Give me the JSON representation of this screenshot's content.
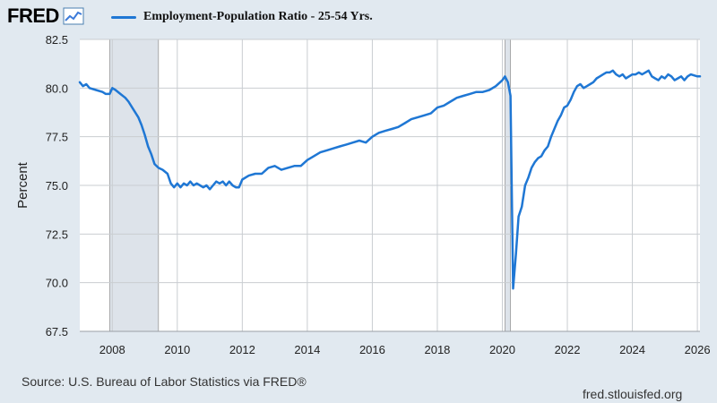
{
  "header": {
    "logo_text": "FRED",
    "logo_icon": "line-chart-icon",
    "legend_label": "Employment-Population Ratio - 25-54 Yrs.",
    "series_color": "#1f77d4"
  },
  "footer": {
    "source": "Source: U.S. Bureau of Labor Statistics via FRED®",
    "site": "fred.stlouisfed.org"
  },
  "colors": {
    "background": "#e1e9f0",
    "plot_background": "#ffffff",
    "recession_shade": "#dde3ea",
    "grid": "#c9cdd1",
    "line": "#1f77d4"
  },
  "chart_data": {
    "type": "line",
    "title": "",
    "xlabel": "",
    "ylabel": "Percent",
    "x_tick_labels": [
      "2008",
      "2010",
      "2012",
      "2014",
      "2016",
      "2018",
      "2020",
      "2022",
      "2024",
      "2026"
    ],
    "x_ticks": [
      2008,
      2010,
      2012,
      2014,
      2016,
      2018,
      2020,
      2022,
      2024,
      2026
    ],
    "y_tick_labels": [
      "67.5",
      "70.0",
      "72.5",
      "75.0",
      "77.5",
      "80.0",
      "82.5"
    ],
    "y_ticks": [
      67.5,
      70.0,
      72.5,
      75.0,
      77.5,
      80.0,
      82.5
    ],
    "xlim": [
      2007.0,
      2026.08
    ],
    "ylim": [
      67.5,
      82.5
    ],
    "grid": true,
    "legend_position": "top-left",
    "recessions": [
      {
        "start": 2007.92,
        "end": 2009.42
      },
      {
        "start": 2020.08,
        "end": 2020.25
      }
    ],
    "series": [
      {
        "name": "Employment-Population Ratio - 25-54 Yrs.",
        "x": [
          2007.0,
          2007.1,
          2007.2,
          2007.3,
          2007.5,
          2007.7,
          2007.8,
          2007.92,
          2008.0,
          2008.1,
          2008.25,
          2008.4,
          2008.5,
          2008.65,
          2008.8,
          2008.9,
          2009.0,
          2009.1,
          2009.2,
          2009.3,
          2009.42,
          2009.55,
          2009.7,
          2009.8,
          2009.9,
          2010.0,
          2010.1,
          2010.2,
          2010.3,
          2010.4,
          2010.5,
          2010.6,
          2010.7,
          2010.8,
          2010.9,
          2011.0,
          2011.1,
          2011.2,
          2011.3,
          2011.4,
          2011.5,
          2011.6,
          2011.7,
          2011.8,
          2011.9,
          2012.0,
          2012.2,
          2012.4,
          2012.6,
          2012.8,
          2013.0,
          2013.2,
          2013.4,
          2013.6,
          2013.8,
          2014.0,
          2014.2,
          2014.4,
          2014.6,
          2014.8,
          2015.0,
          2015.2,
          2015.4,
          2015.6,
          2015.8,
          2016.0,
          2016.2,
          2016.4,
          2016.6,
          2016.8,
          2017.0,
          2017.2,
          2017.4,
          2017.6,
          2017.8,
          2018.0,
          2018.2,
          2018.4,
          2018.6,
          2018.8,
          2019.0,
          2019.2,
          2019.4,
          2019.6,
          2019.8,
          2020.0,
          2020.08,
          2020.17,
          2020.25,
          2020.33,
          2020.42,
          2020.5,
          2020.6,
          2020.7,
          2020.8,
          2020.9,
          2021.0,
          2021.1,
          2021.2,
          2021.3,
          2021.4,
          2021.5,
          2021.6,
          2021.7,
          2021.8,
          2021.9,
          2022.0,
          2022.1,
          2022.2,
          2022.3,
          2022.4,
          2022.5,
          2022.6,
          2022.7,
          2022.8,
          2022.9,
          2023.0,
          2023.1,
          2023.2,
          2023.3,
          2023.4,
          2023.5,
          2023.6,
          2023.7,
          2023.8,
          2023.9,
          2024.0,
          2024.1,
          2024.2,
          2024.3,
          2024.4,
          2024.5,
          2024.6,
          2024.7,
          2024.8,
          2024.9,
          2025.0,
          2025.1,
          2025.2,
          2025.3,
          2025.4,
          2025.5,
          2025.6,
          2025.7,
          2025.8,
          2026.0,
          2026.08
        ],
        "y": [
          80.3,
          80.1,
          80.2,
          80.0,
          79.9,
          79.8,
          79.7,
          79.7,
          80.0,
          79.9,
          79.7,
          79.5,
          79.3,
          78.9,
          78.5,
          78.1,
          77.6,
          77.0,
          76.6,
          76.1,
          75.9,
          75.8,
          75.6,
          75.1,
          74.9,
          75.1,
          74.9,
          75.1,
          75.0,
          75.2,
          75.0,
          75.1,
          75.0,
          74.9,
          75.0,
          74.8,
          75.0,
          75.2,
          75.1,
          75.2,
          75.0,
          75.2,
          75.0,
          74.9,
          74.9,
          75.3,
          75.5,
          75.6,
          75.6,
          75.9,
          76.0,
          75.8,
          75.9,
          76.0,
          76.0,
          76.3,
          76.5,
          76.7,
          76.8,
          76.9,
          77.0,
          77.1,
          77.2,
          77.3,
          77.2,
          77.5,
          77.7,
          77.8,
          77.9,
          78.0,
          78.2,
          78.4,
          78.5,
          78.6,
          78.7,
          79.0,
          79.1,
          79.3,
          79.5,
          79.6,
          79.7,
          79.8,
          79.8,
          79.9,
          80.1,
          80.4,
          80.6,
          80.3,
          79.6,
          69.7,
          71.5,
          73.4,
          73.9,
          75.0,
          75.4,
          75.9,
          76.2,
          76.4,
          76.5,
          76.8,
          77.0,
          77.5,
          77.9,
          78.3,
          78.6,
          79.0,
          79.1,
          79.4,
          79.8,
          80.1,
          80.2,
          80.0,
          80.1,
          80.2,
          80.3,
          80.5,
          80.6,
          80.7,
          80.8,
          80.8,
          80.9,
          80.7,
          80.6,
          80.7,
          80.5,
          80.6,
          80.7,
          80.7,
          80.8,
          80.7,
          80.8,
          80.9,
          80.6,
          80.5,
          80.4,
          80.6,
          80.5,
          80.7,
          80.6,
          80.4,
          80.5,
          80.6,
          80.4,
          80.6,
          80.7,
          80.6,
          80.6
        ]
      }
    ]
  }
}
